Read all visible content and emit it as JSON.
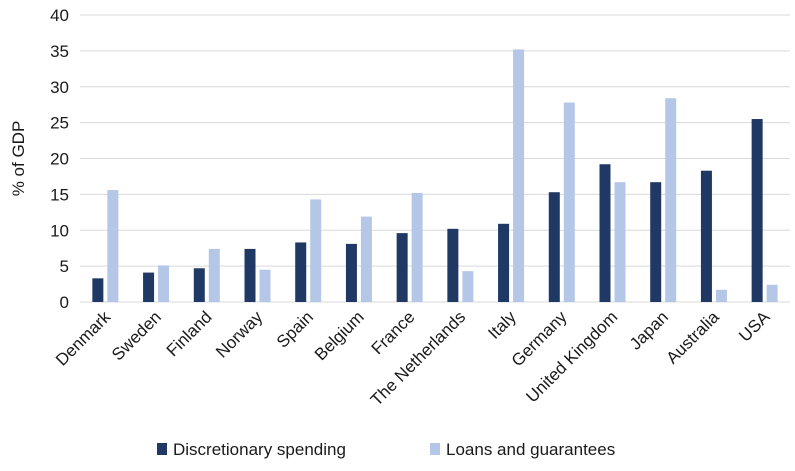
{
  "chart_data": {
    "type": "bar",
    "title": "",
    "xlabel": "",
    "ylabel": "% of GDP",
    "ylim": [
      0,
      40
    ],
    "yticks": [
      0,
      5,
      10,
      15,
      20,
      25,
      30,
      35,
      40
    ],
    "grid": "horizontal",
    "legend_position": "bottom",
    "categories": [
      "Denmark",
      "Sweden",
      "Finland",
      "Norway",
      "Spain",
      "Belgium",
      "France",
      "The Netherlands",
      "Italy",
      "Germany",
      "United Kingdom",
      "Japan",
      "Australia",
      "USA"
    ],
    "series": [
      {
        "name": "Discretionary spending",
        "color": "#1f3864",
        "values": [
          3.3,
          4.1,
          4.7,
          7.4,
          8.3,
          8.1,
          9.6,
          10.2,
          10.9,
          15.3,
          19.2,
          16.7,
          18.3,
          25.5
        ]
      },
      {
        "name": "Loans and guarantees",
        "color": "#b4c7e7",
        "values": [
          15.6,
          5.1,
          7.4,
          4.5,
          14.3,
          11.9,
          15.2,
          4.3,
          35.2,
          27.8,
          16.7,
          28.4,
          1.7,
          2.4
        ]
      }
    ]
  }
}
